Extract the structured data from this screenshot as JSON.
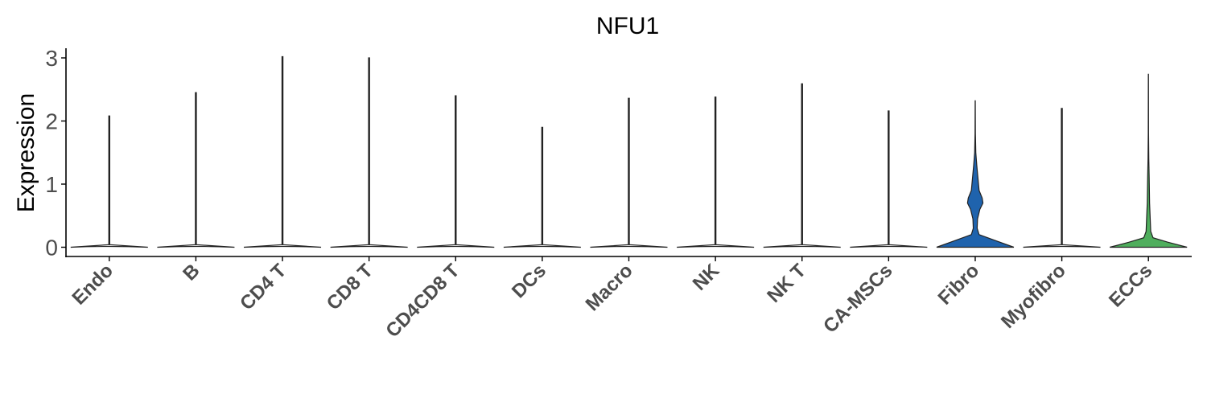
{
  "chart_data": {
    "type": "violin",
    "title": "NFU1",
    "xlabel": "",
    "ylabel": "Expression",
    "ylim": [
      -0.15,
      3.15
    ],
    "yticks": [
      "0",
      "1",
      "2",
      "3"
    ],
    "categories": [
      "Endo",
      "B",
      "CD4 T",
      "CD8 T",
      "CD4CD8 T",
      "DCs",
      "Macro",
      "NK",
      "NK T",
      "CA-MSCs",
      "Fibro",
      "Myofibro",
      "ECCs"
    ],
    "max_expression": [
      2.08,
      2.45,
      3.02,
      3.0,
      2.4,
      1.9,
      2.36,
      2.38,
      2.59,
      2.16,
      2.32,
      2.2,
      2.74
    ],
    "density_profiles": {
      "Fibro": [
        [
          0,
          1.0
        ],
        [
          0.1,
          0.55
        ],
        [
          0.2,
          0.1
        ],
        [
          0.3,
          0.05
        ],
        [
          0.45,
          0.06
        ],
        [
          0.6,
          0.12
        ],
        [
          0.7,
          0.2
        ],
        [
          0.78,
          0.18
        ],
        [
          0.9,
          0.1
        ],
        [
          1.1,
          0.07
        ],
        [
          1.3,
          0.04
        ],
        [
          1.5,
          0.015
        ],
        [
          1.8,
          0.005
        ]
      ],
      "ECCs": [
        [
          0,
          1.0
        ],
        [
          0.08,
          0.5
        ],
        [
          0.15,
          0.12
        ],
        [
          0.25,
          0.06
        ],
        [
          0.4,
          0.05
        ],
        [
          0.55,
          0.04
        ],
        [
          0.7,
          0.03
        ],
        [
          0.9,
          0.025
        ],
        [
          1.1,
          0.02
        ],
        [
          1.4,
          0.01
        ],
        [
          1.8,
          0.004
        ]
      ]
    },
    "fill_colors": {
      "Fibro": "#1f63ad",
      "ECCs": "#4fae5d",
      "default": "#ffffff"
    },
    "grid": false,
    "legend": "none"
  }
}
